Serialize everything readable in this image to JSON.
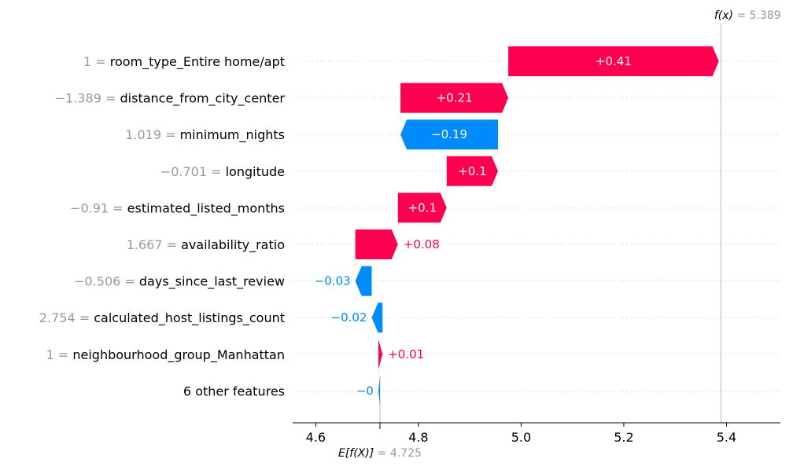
{
  "chart_data": {
    "type": "waterfall",
    "base_value": 4.725,
    "output_value": 5.389,
    "base_label": "E[f(X)]",
    "output_label": "f(x)",
    "base_value_text": "= 4.725",
    "output_value_text": "= 5.389",
    "xlim": [
      4.555,
      5.505
    ],
    "xticks": [
      {
        "value": 4.6,
        "label": "4.6"
      },
      {
        "value": 4.8,
        "label": "4.8"
      },
      {
        "value": 5.0,
        "label": "5.0"
      },
      {
        "value": 5.2,
        "label": "5.2"
      },
      {
        "value": 5.4,
        "label": "5.4"
      }
    ],
    "features": [
      {
        "value_text": "1 =",
        "name": "room_type_Entire home/apt",
        "contribution": 0.41,
        "label": "+0.41"
      },
      {
        "value_text": "−1.389 =",
        "name": "distance_from_city_center",
        "contribution": 0.21,
        "label": "+0.21"
      },
      {
        "value_text": "1.019 =",
        "name": "minimum_nights",
        "contribution": -0.19,
        "label": "−0.19"
      },
      {
        "value_text": "−0.701 =",
        "name": "longitude",
        "contribution": 0.1,
        "label": "+0.1"
      },
      {
        "value_text": "−0.91 =",
        "name": "estimated_listed_months",
        "contribution": 0.095,
        "label": "+0.1"
      },
      {
        "value_text": "1.667 =",
        "name": "availability_ratio",
        "contribution": 0.083,
        "label": "+0.08"
      },
      {
        "value_text": "−0.506 =",
        "name": "days_since_last_review",
        "contribution": -0.032,
        "label": "−0.03"
      },
      {
        "value_text": "2.754 =",
        "name": "calculated_host_listings_count",
        "contribution": -0.021,
        "label": "−0.02"
      },
      {
        "value_text": "1 =",
        "name": "neighbourhood_group_Manhattan",
        "contribution": 0.008,
        "label": "+0.01"
      },
      {
        "value_text": "",
        "name": "6 other features",
        "contribution": -0.003,
        "label": "−0"
      }
    ],
    "colors": {
      "positive": "#ff0051",
      "negative": "#008bfb",
      "muted": "#999999"
    }
  }
}
